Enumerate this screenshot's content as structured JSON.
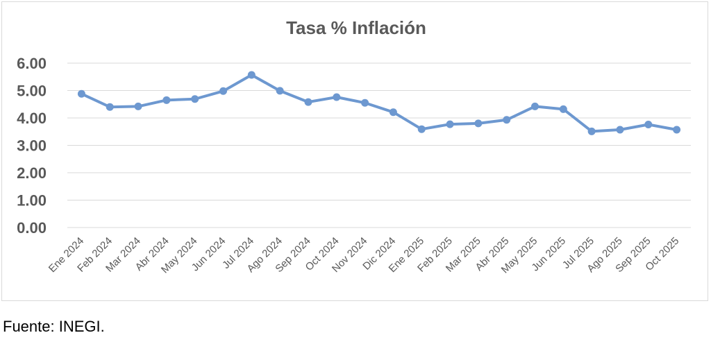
{
  "source": "Fuente: INEGI.",
  "chart_data": {
    "type": "line",
    "title": "Tasa % Inflación",
    "xlabel": "",
    "ylabel": "",
    "ylim": [
      0,
      6
    ],
    "yticks": [
      "0.00",
      "1.00",
      "2.00",
      "3.00",
      "4.00",
      "5.00",
      "6.00"
    ],
    "grid": true,
    "legend": "none",
    "color": "#6d98d0",
    "categories": [
      "Ene 2024",
      "Feb 2024",
      "Mar 2024",
      "Abr 2024",
      "May 2024",
      "Jun 2024",
      "Jul 2024",
      "Ago 2024",
      "Sep 2024",
      "Oct 2024",
      "Nov 2024",
      "Dic 2024",
      "Ene 2025",
      "Feb 2025",
      "Mar 2025",
      "Abr 2025",
      "May 2025",
      "Jun 2025",
      "Jul 2025",
      "Ago 2025",
      "Sep 2025",
      "Oct 2025"
    ],
    "values": [
      4.88,
      4.4,
      4.42,
      4.65,
      4.69,
      4.98,
      5.57,
      4.99,
      4.58,
      4.76,
      4.55,
      4.21,
      3.59,
      3.77,
      3.8,
      3.93,
      4.42,
      4.32,
      3.51,
      3.57,
      3.76,
      3.57
    ]
  }
}
